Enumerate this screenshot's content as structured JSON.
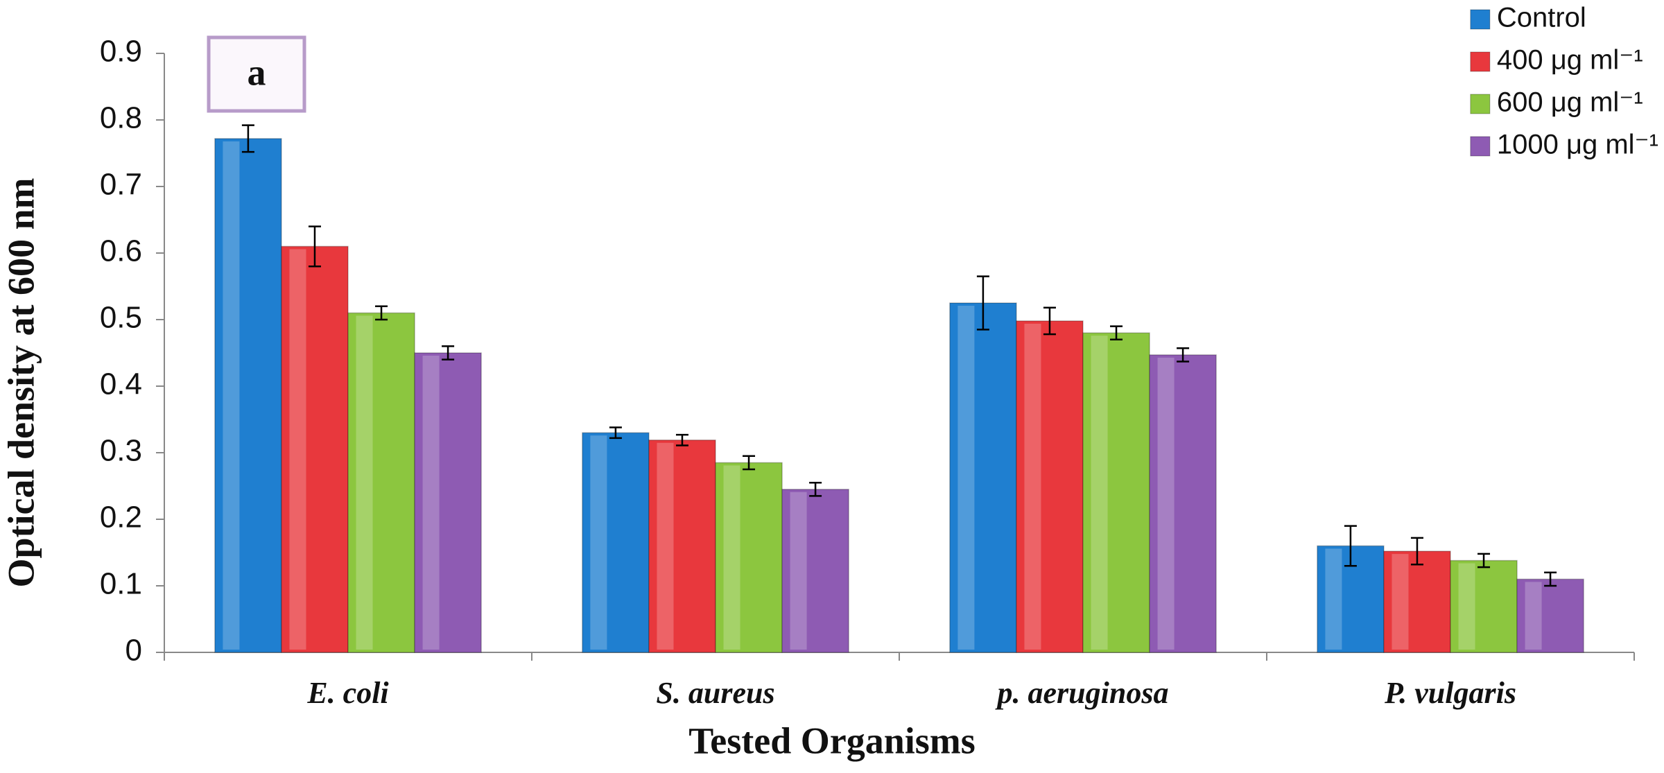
{
  "chart_data": {
    "type": "bar",
    "x_label": "Tested Organisms",
    "y_label": "Optical density at 600 nm",
    "annotation": "a",
    "categories": [
      "E. coli",
      "S. aureus",
      "p. aeruginosa",
      "P. vulgaris"
    ],
    "series": [
      {
        "name": "Control",
        "color": "#1f7fd0",
        "values": [
          0.772,
          0.33,
          0.525,
          0.16
        ],
        "errors": [
          0.02,
          0.008,
          0.04,
          0.03
        ]
      },
      {
        "name": "400 μg ml⁻¹",
        "color": "#e8383d",
        "values": [
          0.61,
          0.319,
          0.498,
          0.152
        ],
        "errors": [
          0.03,
          0.008,
          0.02,
          0.02
        ]
      },
      {
        "name": "600 μg ml⁻¹",
        "color": "#8cc63f",
        "values": [
          0.51,
          0.285,
          0.48,
          0.138
        ],
        "errors": [
          0.01,
          0.01,
          0.01,
          0.01
        ]
      },
      {
        "name": "1000 μg ml⁻¹",
        "color": "#8e5bb3",
        "values": [
          0.45,
          0.245,
          0.447,
          0.11
        ],
        "errors": [
          0.01,
          0.01,
          0.01,
          0.01
        ]
      }
    ],
    "ylim": [
      0,
      0.9
    ],
    "yticks": [
      0,
      0.1,
      0.2,
      0.3,
      0.4,
      0.5,
      0.6,
      0.7,
      0.8,
      0.9
    ],
    "legend": "top-right"
  }
}
